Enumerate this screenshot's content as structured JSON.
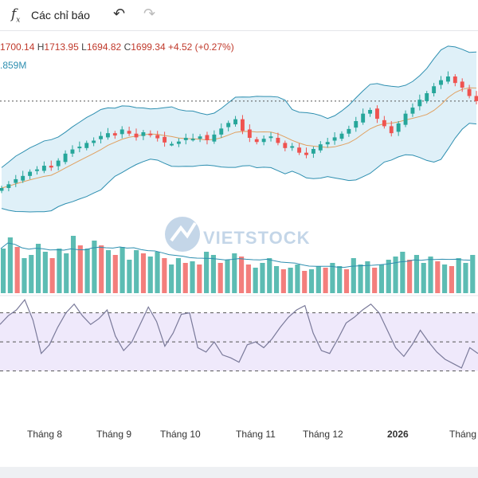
{
  "toolbar": {
    "fx_icon": "fx-icon",
    "indicators_label": "Các chỉ báo",
    "undo_icon": "undo-icon",
    "redo_icon": "redo-icon"
  },
  "legend": {
    "open": "1700.14",
    "high_key": "H",
    "high": "1713.95",
    "low_key": "L",
    "low": "1694.82",
    "close_key": "C",
    "close": "1699.34",
    "change": "+4.52 (+0.27%)",
    "volume": ".859M"
  },
  "watermark": {
    "text": "VIETSTOCK",
    "sub": ""
  },
  "x_axis": {
    "labels": [
      "Tháng 8",
      "Tháng 9",
      "Tháng 10",
      "Tháng 11",
      "Tháng 12",
      "2026",
      "Tháng"
    ]
  },
  "colors": {
    "up": "#26a69a",
    "down": "#ef5350",
    "ma": "#e0a060",
    "band": "#2e8fb0",
    "band_fill": "#dff0f8",
    "rsi": "#7a7a9a",
    "rsi_fill": "#efe9fb"
  },
  "chart_data": {
    "type": "candlestick",
    "price_series": [
      1512,
      1520,
      1531,
      1538,
      1547,
      1552,
      1560,
      1556,
      1571,
      1586,
      1595,
      1601,
      1609,
      1614,
      1624,
      1630,
      1625,
      1638,
      1629,
      1621,
      1632,
      1626,
      1619,
      1610,
      1607,
      1612,
      1620,
      1618,
      1623,
      1615,
      1627,
      1640,
      1652,
      1660,
      1635,
      1620,
      1611,
      1618,
      1623,
      1609,
      1598,
      1602,
      1588,
      1583,
      1596,
      1606,
      1611,
      1621,
      1629,
      1639,
      1656,
      1672,
      1680,
      1661,
      1645,
      1630,
      1651,
      1672,
      1685,
      1702,
      1716,
      1731,
      1744,
      1752,
      1738,
      1728,
      1710,
      1699
    ],
    "volume_series": [
      28,
      35,
      29,
      22,
      24,
      31,
      26,
      22,
      28,
      25,
      36,
      30,
      28,
      33,
      30,
      27,
      24,
      29,
      21,
      27,
      25,
      23,
      26,
      22,
      18,
      22,
      19,
      20,
      18,
      26,
      24,
      19,
      21,
      25,
      23,
      18,
      16,
      19,
      22,
      17,
      15,
      16,
      18,
      14,
      15,
      17,
      16,
      19,
      17,
      15,
      22,
      18,
      20,
      16,
      18,
      21,
      23,
      26,
      21,
      24,
      19,
      23,
      20,
      18,
      17,
      22,
      19,
      24
    ],
    "rsi_series": [
      62,
      68,
      72,
      79,
      65,
      42,
      48,
      60,
      70,
      76,
      68,
      62,
      66,
      72,
      54,
      44,
      50,
      62,
      74,
      64,
      47,
      56,
      69,
      70,
      46,
      43,
      50,
      41,
      39,
      36,
      48,
      50,
      46,
      52,
      60,
      67,
      72,
      75,
      56,
      44,
      42,
      52,
      63,
      67,
      72,
      76,
      70,
      58,
      46,
      40,
      48,
      58,
      50,
      43,
      38,
      35,
      32,
      46,
      42
    ],
    "rsi_levels": [
      70,
      50,
      30
    ]
  }
}
